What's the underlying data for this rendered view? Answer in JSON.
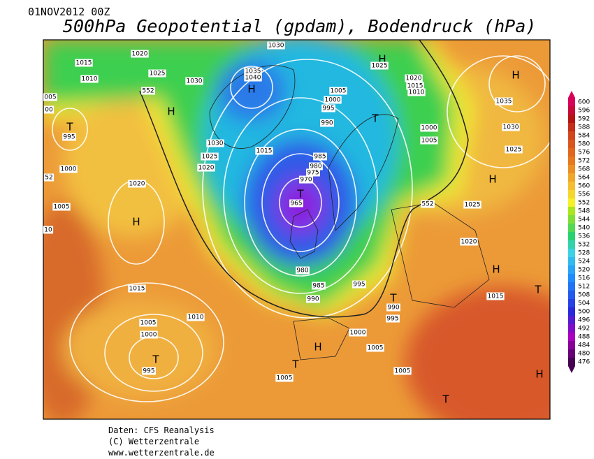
{
  "header": {
    "date": "01NOV2012 00Z",
    "title": "500hPa Geopotential (gpdam), Bodendruck (hPa)"
  },
  "colorbar": {
    "ticks": [
      600,
      596,
      592,
      588,
      584,
      580,
      576,
      572,
      568,
      564,
      560,
      556,
      552,
      548,
      544,
      540,
      536,
      532,
      528,
      524,
      520,
      516,
      512,
      508,
      504,
      500,
      496,
      492,
      488,
      484,
      480,
      476
    ]
  },
  "map": {
    "labels": [
      "H",
      "H",
      "H",
      "H",
      "H",
      "H",
      "H",
      "H",
      "H",
      "T",
      "T",
      "T",
      "T",
      "T",
      "T",
      "T",
      "T",
      "1015",
      "1010",
      "1020",
      "1025",
      "1030",
      "1035",
      "1040",
      "1030",
      "1005",
      "1000",
      "995",
      "990",
      "985",
      "980",
      "975",
      "970",
      "965",
      "980",
      "985",
      "990",
      "995",
      "990",
      "995",
      "1000",
      "1005",
      "1005",
      "1005",
      "1015",
      "1010",
      "1005",
      "1000",
      "995",
      "1000",
      "1005",
      "1020",
      "995",
      "1030",
      "1025",
      "1020",
      "1015",
      "1020",
      "1015",
      "1010",
      "1000",
      "1005",
      "1025",
      "1020",
      "1015",
      "1035",
      "1030",
      "1025",
      "1025",
      "552",
      "552",
      "005",
      "00",
      "52",
      "10"
    ]
  },
  "footer": {
    "lines": [
      "Daten: CFS Reanalysis",
      "(C) Wetterzentrale",
      "www.wetterzentrale.de"
    ]
  }
}
